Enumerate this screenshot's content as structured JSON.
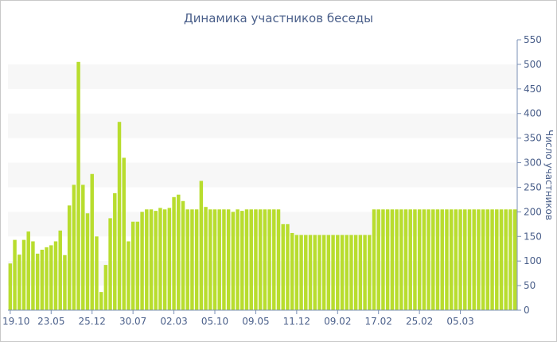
{
  "chart_data": {
    "type": "bar",
    "title": "Динамика участников беседы",
    "xlabel": "",
    "ylabel": "Число участников",
    "ylim": [
      0,
      550
    ],
    "y_ticks": [
      0,
      50,
      100,
      150,
      200,
      250,
      300,
      350,
      400,
      450,
      500,
      550
    ],
    "x_tick_labels": [
      "19.10",
      "23.05",
      "25.12",
      "30.07",
      "02.03",
      "05.10",
      "09.05",
      "11.12",
      "09.02",
      "17.02",
      "25.02",
      "05.03"
    ],
    "x_tick_positions": [
      0,
      9,
      18,
      27,
      36,
      45,
      54,
      63,
      72,
      81,
      90,
      99
    ],
    "y_axis_position": "right",
    "grid": "alternating horizontal bands",
    "bar_color": "#b8dd2e",
    "band_color": "#f7f7f7",
    "text_color": "#4a5f8a",
    "values": [
      95,
      143,
      113,
      143,
      160,
      140,
      115,
      123,
      128,
      132,
      140,
      162,
      112,
      213,
      255,
      505,
      255,
      197,
      277,
      150,
      37,
      92,
      187,
      238,
      383,
      310,
      140,
      180,
      180,
      200,
      205,
      205,
      202,
      208,
      205,
      208,
      230,
      235,
      222,
      205,
      205,
      205,
      263,
      210,
      205,
      205,
      205,
      205,
      205,
      200,
      205,
      202,
      205,
      205,
      205,
      205,
      205,
      205,
      205,
      205,
      175,
      175,
      157,
      153,
      153,
      153,
      153,
      153,
      153,
      153,
      153,
      153,
      153,
      153,
      153,
      153,
      153,
      153,
      153,
      153,
      205,
      205,
      205,
      205,
      205,
      205,
      205,
      205,
      205,
      205,
      205,
      205,
      205,
      205,
      205,
      205,
      205,
      205,
      205,
      205,
      205,
      205,
      205,
      205,
      205,
      205,
      205,
      205,
      205,
      205,
      205,
      205
    ]
  }
}
